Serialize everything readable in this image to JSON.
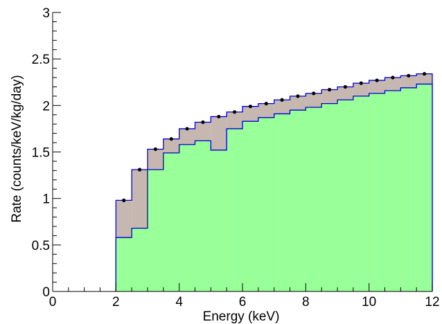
{
  "chart_data": {
    "type": "bar",
    "xlabel": "Energy (keV)",
    "ylabel": "Rate (counts/keV/kg/day)",
    "xlim": [
      0,
      12
    ],
    "ylim": [
      0,
      3
    ],
    "x_ticks": [
      "0",
      "2",
      "4",
      "6",
      "8",
      "10",
      "12"
    ],
    "y_ticks": [
      "0",
      "0.5",
      "1",
      "1.5",
      "2",
      "2.5",
      "3"
    ],
    "grid": false,
    "bin_edges": [
      2.0,
      2.5,
      3.0,
      3.5,
      4.0,
      4.5,
      5.0,
      5.5,
      6.0,
      6.5,
      7.0,
      7.5,
      8.0,
      8.5,
      9.0,
      9.5,
      10.0,
      10.5,
      11.0,
      11.5,
      12.0
    ],
    "series": [
      {
        "style": "filled-histogram",
        "fill": "#99ff99",
        "values": [
          0.58,
          0.68,
          1.31,
          1.49,
          1.58,
          1.62,
          1.52,
          1.75,
          1.83,
          1.87,
          1.91,
          1.95,
          1.98,
          2.02,
          2.06,
          2.1,
          2.13,
          2.16,
          2.19,
          2.23
        ]
      },
      {
        "style": "filled-histogram",
        "fill": "#c6b8b0",
        "values": [
          0.98,
          1.31,
          1.53,
          1.64,
          1.75,
          1.82,
          1.88,
          1.93,
          1.99,
          2.02,
          2.06,
          2.1,
          2.13,
          2.17,
          2.2,
          2.24,
          2.27,
          2.3,
          2.32,
          2.34
        ]
      },
      {
        "style": "markers",
        "color": "#000000",
        "values": [
          0.98,
          1.31,
          1.53,
          1.64,
          1.75,
          1.82,
          1.88,
          1.93,
          1.99,
          2.02,
          2.06,
          2.1,
          2.13,
          2.17,
          2.2,
          2.24,
          2.27,
          2.3,
          2.32,
          2.34
        ]
      }
    ],
    "colors": {
      "outline": "#0000cc",
      "axis": "#000000",
      "background": "#ffffff"
    }
  }
}
